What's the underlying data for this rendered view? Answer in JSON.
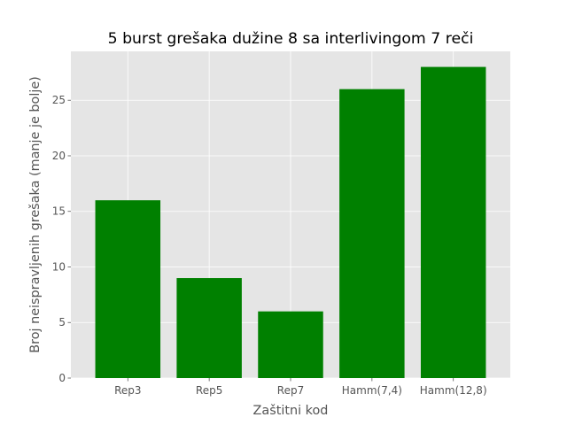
{
  "chart_data": {
    "type": "bar",
    "title": "5 burst grešaka dužine 8 sa interlivingom 7 reči",
    "xlabel": "Zaštitni kod",
    "ylabel": "Broj neispravljenih grešaka (manje je bolje)",
    "categories": [
      "Rep3",
      "Rep5",
      "Rep7",
      "Hamm(7,4)",
      "Hamm(12,8)"
    ],
    "values": [
      16,
      9,
      6,
      26,
      28
    ],
    "ylim": [
      0,
      29.4
    ],
    "yticks": [
      0,
      5,
      10,
      15,
      20,
      25
    ],
    "grid": true,
    "bar_color": "#008000",
    "background_color": "#e5e5e5",
    "grid_color": "#ffffff"
  }
}
